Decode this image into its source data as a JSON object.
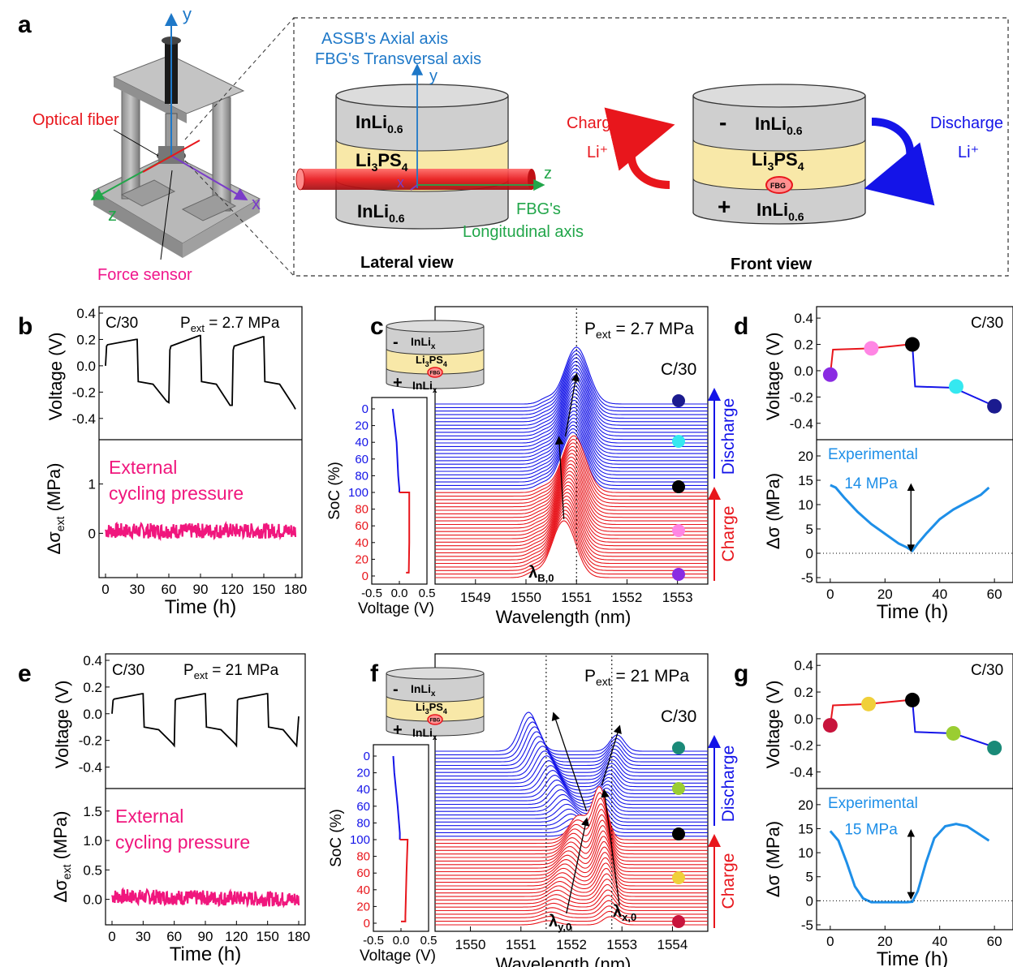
{
  "panel_letters": {
    "a": "a",
    "b": "b",
    "c": "c",
    "d": "d",
    "e": "e",
    "f": "f",
    "g": "g"
  },
  "panel_a": {
    "optical_fiber": "Optical fiber",
    "force_sensor": "Force sensor",
    "axis_y": "y",
    "axis_z": "z",
    "axis_x": "x",
    "assb_axial": "ASSB's Axial axis",
    "fbg_transversal": "FBG's Transversal axis",
    "fbg_s": "FBG's",
    "longitudinal_axis": "Longitudinal axis",
    "inli": "InLi",
    "inli_sub": "0.6",
    "li3ps4_li": "Li",
    "li3ps4_3": "3",
    "li3ps4_ps": "PS",
    "li3ps4_4": "4",
    "lateral_view": "Lateral view",
    "front_view": "Front view",
    "charge": "Charge",
    "discharge": "Discharge",
    "li_plus": "Li⁺",
    "minus": "-",
    "plus": "+",
    "fbg": "FBG"
  },
  "row1": {
    "b": {
      "rate": "C/30",
      "p_ext_prefix": "P",
      "p_ext_sub": "ext",
      "p_ext_value": " = 2.7 MPa",
      "ylabel_voltage": "Voltage (V)",
      "ylabel_stress": "Δσ",
      "ylabel_stress_sub": "ext",
      "ylabel_stress_unit": " (MPa)",
      "external_line1": "External",
      "external_line2": "cycling pressure",
      "xlabel": "Time (h)",
      "x_ticks": [
        "0",
        "30",
        "60",
        "90",
        "120",
        "150",
        "180"
      ],
      "v_ticks": [
        "0.4",
        "0.2",
        "0.0",
        "-0.2",
        "-0.4"
      ],
      "s_ticks": [
        "1",
        "0"
      ]
    },
    "c": {
      "p_ext_prefix": "P",
      "p_ext_sub": "ext",
      "p_ext_value": " = 2.7 MPa",
      "rate": "C/30",
      "soc_label": "SoC (%)",
      "soc_ticks": [
        "0",
        "20",
        "40",
        "60",
        "80",
        "100",
        "80",
        "60",
        "40",
        "20",
        "0"
      ],
      "volt_label": "Voltage (V)",
      "volt_ticks": [
        "-0.5",
        "0.0",
        "0.5"
      ],
      "xlabel": "Wavelength (nm)",
      "wl_ticks": [
        "1549",
        "1550",
        "1551",
        "1552",
        "1553"
      ],
      "lambda_main": "λ",
      "lambda_sub": "B,0",
      "discharge": "Discharge",
      "charge": "Charge",
      "inset_inli": "InLi",
      "inset_x": "x",
      "inset_li": "Li",
      "inset_3": "3",
      "inset_ps": "PS",
      "inset_4": "4",
      "inset_minus": "-",
      "inset_plus": "+",
      "inset_fbg": "FBG",
      "dot_colors": [
        "#1b1b8f",
        "#35e8f0",
        "#000000",
        "#ff86e4",
        "#8a2be2"
      ]
    },
    "d": {
      "rate": "C/30",
      "ylabel_voltage": "Voltage (V)",
      "ylabel_stress": "Δσ (MPa)",
      "experimental": "Experimental",
      "annotation": "14 MPa",
      "xlabel": "Time (h)",
      "x_ticks": [
        "0",
        "20",
        "40",
        "60"
      ],
      "v_ticks": [
        "0.4",
        "0.2",
        "0.0",
        "-0.2",
        "-0.4"
      ],
      "s_ticks": [
        "20",
        "15",
        "10",
        "5",
        "0",
        "-5"
      ],
      "dot_colors": [
        "#8a2be2",
        "#ff86e4",
        "#000000",
        "#35e8f0",
        "#1b1b8f"
      ]
    }
  },
  "row2": {
    "e": {
      "rate": "C/30",
      "p_ext_prefix": "P",
      "p_ext_sub": "ext",
      "p_ext_value": " = 21 MPa",
      "ylabel_voltage": "Voltage (V)",
      "ylabel_stress": "Δσ",
      "ylabel_stress_sub": "ext",
      "ylabel_stress_unit": " (MPa)",
      "external_line1": "External",
      "external_line2": "cycling pressure",
      "xlabel": "Time (h)",
      "x_ticks": [
        "0",
        "30",
        "60",
        "90",
        "120",
        "150",
        "180"
      ],
      "v_ticks": [
        "0.4",
        "0.2",
        "0.0",
        "-0.2",
        "-0.4"
      ],
      "s_ticks": [
        "1.5",
        "1.0",
        "0.5",
        "0.0"
      ]
    },
    "f": {
      "p_ext_prefix": "P",
      "p_ext_sub": "ext",
      "p_ext_value": " = 21 MPa",
      "rate": "C/30",
      "soc_label": "SoC (%)",
      "soc_ticks": [
        "0",
        "20",
        "40",
        "60",
        "80",
        "100",
        "80",
        "60",
        "40",
        "20",
        "0"
      ],
      "volt_label": "Voltage (V)",
      "volt_ticks": [
        "-0.5",
        "0.0",
        "0.5"
      ],
      "xlabel": "Wavelength (nm)",
      "wl_ticks": [
        "1550",
        "1551",
        "1552",
        "1553",
        "1554"
      ],
      "lambda_y": "λ",
      "lambda_y_sub": "y,0",
      "lambda_x": "λ",
      "lambda_x_sub": "x,0",
      "discharge": "Discharge",
      "charge": "Charge",
      "inset_inli": "InLi",
      "inset_x": "x",
      "inset_li": "Li",
      "inset_3": "3",
      "inset_ps": "PS",
      "inset_4": "4",
      "inset_minus": "-",
      "inset_plus": "+",
      "inset_fbg": "FBG",
      "dot_colors": [
        "#1a8a78",
        "#9acd32",
        "#000000",
        "#f0d03a",
        "#c8143c"
      ]
    },
    "g": {
      "rate": "C/30",
      "ylabel_voltage": "Voltage (V)",
      "ylabel_stress": "Δσ (MPa)",
      "experimental": "Experimental",
      "annotation": "15 MPa",
      "xlabel": "Time (h)",
      "x_ticks": [
        "0",
        "20",
        "40",
        "60"
      ],
      "v_ticks": [
        "0.4",
        "0.2",
        "0.0",
        "-0.2",
        "-0.4"
      ],
      "s_ticks": [
        "20",
        "15",
        "10",
        "5",
        "0",
        "-5"
      ],
      "dot_colors": [
        "#c8143c",
        "#f0d03a",
        "#000000",
        "#9acd32",
        "#1a8a78"
      ]
    }
  },
  "colors": {
    "charge": "#e8161c",
    "discharge": "#1414e8",
    "stress": "#f0167d",
    "experimental": "#1e8fe8",
    "fiber": "#e8161c",
    "electrolyte": "#f8e8a8",
    "electrode": "#cfcfcf",
    "axis_y": "#1e78c8",
    "axis_z": "#22a64a",
    "axis_x": "#7a3cc8",
    "force_sensor": "#f0168c"
  },
  "chart_data": [
    {
      "panel": "b",
      "type": "line",
      "xlabel": "Time (h)",
      "ylabel": "Voltage (V)",
      "xlim": [
        0,
        180
      ],
      "ylim": [
        -0.5,
        0.4
      ],
      "series": [
        {
          "values_x": [
            0,
            1,
            2,
            29,
            30,
            31,
            45,
            58,
            60,
            61,
            62,
            89,
            90,
            91,
            105,
            118,
            120,
            121,
            122,
            149,
            150,
            151,
            165,
            178,
            180
          ],
          "values_y": [
            0.0,
            0.15,
            0.16,
            0.2,
            0.2,
            -0.12,
            -0.14,
            -0.27,
            -0.28,
            0.12,
            0.15,
            0.23,
            0.23,
            -0.12,
            -0.14,
            -0.3,
            -0.3,
            0.12,
            0.15,
            0.22,
            0.22,
            -0.12,
            -0.14,
            -0.3,
            -0.33
          ]
        }
      ]
    },
    {
      "panel": "b-stress",
      "type": "line",
      "xlabel": "Time (h)",
      "xlim": [
        0,
        180
      ],
      "ylim": [
        -0.8,
        1.8
      ],
      "series": [
        {
          "values_x": [
            0,
            180
          ],
          "values_y": [
            0.05,
            0.05
          ]
        }
      ]
    },
    {
      "panel": "c",
      "type": "line",
      "xlabel": "Wavelength (nm)",
      "xlim": [
        1548.2,
        1553.6
      ],
      "curves": 50,
      "peak_start_nm": 1550.75,
      "peak_end_nm": 1551.0
    },
    {
      "panel": "d",
      "type": "line",
      "xlabel": "Time (h)",
      "ylabel": "Δσ (MPa)",
      "xlim": [
        -5,
        65
      ],
      "ylim_voltage": [
        -0.5,
        0.4
      ],
      "ylim_stress": [
        -5,
        22
      ],
      "voltage_x": [
        0,
        1,
        15,
        29,
        30,
        31,
        45,
        58,
        60
      ],
      "voltage_y": [
        -0.03,
        0.16,
        0.17,
        0.2,
        0.2,
        -0.12,
        -0.13,
        -0.25,
        -0.27
      ],
      "dots_x": [
        0,
        15,
        30,
        46,
        60
      ],
      "dots_y": [
        -0.03,
        0.17,
        0.2,
        -0.12,
        -0.27
      ],
      "stress_x": [
        0,
        2,
        5,
        10,
        15,
        20,
        25,
        28,
        30,
        32,
        35,
        40,
        45,
        50,
        55,
        58
      ],
      "stress_y": [
        14,
        13.5,
        11.5,
        8.5,
        6,
        4,
        2,
        1.2,
        0.5,
        2,
        4,
        7,
        9,
        10.5,
        12,
        13.5
      ]
    },
    {
      "panel": "e",
      "type": "line",
      "xlabel": "Time (h)",
      "ylabel": "Voltage (V)",
      "xlim": [
        0,
        180
      ],
      "ylim": [
        -0.5,
        0.4
      ],
      "series": [
        {
          "values_x": [
            0,
            1,
            2,
            29,
            30,
            31,
            45,
            58,
            60,
            61,
            62,
            89,
            90,
            91,
            105,
            118,
            120,
            121,
            122,
            149,
            150,
            151,
            165,
            178,
            180
          ],
          "values_y": [
            0.0,
            0.1,
            0.11,
            0.15,
            0.15,
            -0.1,
            -0.12,
            -0.22,
            -0.24,
            0.1,
            0.11,
            0.15,
            0.15,
            -0.1,
            -0.12,
            -0.22,
            -0.24,
            0.1,
            0.11,
            0.15,
            0.15,
            -0.1,
            -0.12,
            -0.24,
            -0.02
          ]
        }
      ]
    },
    {
      "panel": "e-stress",
      "type": "line",
      "xlabel": "Time (h)",
      "xlim": [
        0,
        180
      ],
      "ylim": [
        -0.35,
        1.8
      ],
      "series": [
        {
          "values_x": [
            0,
            180
          ],
          "values_y": [
            0.05,
            0.0
          ]
        }
      ]
    },
    {
      "panel": "f",
      "type": "line",
      "xlabel": "Wavelength (nm)",
      "xlim": [
        1549.3,
        1554.7
      ],
      "curves": 50,
      "peak_y_nm": 1551.5,
      "peak_x_nm": 1552.8
    },
    {
      "panel": "g",
      "type": "line",
      "xlabel": "Time (h)",
      "ylabel": "Δσ (MPa)",
      "xlim": [
        -5,
        65
      ],
      "ylim_voltage": [
        -0.5,
        0.4
      ],
      "ylim_stress": [
        -5,
        22
      ],
      "voltage_x": [
        0,
        1,
        14,
        29,
        30,
        31,
        45,
        58,
        60
      ],
      "voltage_y": [
        -0.05,
        0.1,
        0.11,
        0.14,
        0.14,
        -0.1,
        -0.11,
        -0.2,
        -0.22
      ],
      "dots_x": [
        0,
        14,
        30,
        45,
        60
      ],
      "dots_y": [
        -0.05,
        0.11,
        0.14,
        -0.11,
        -0.22
      ],
      "stress_x": [
        0,
        3,
        6,
        9,
        12,
        15,
        20,
        25,
        28,
        30,
        32,
        35,
        38,
        42,
        46,
        50,
        54,
        58
      ],
      "stress_y": [
        14.5,
        12.5,
        8,
        3,
        0.5,
        -0.3,
        -0.3,
        -0.3,
        -0.3,
        -0.2,
        2,
        8,
        13,
        15.5,
        16,
        15.5,
        14,
        12.5
      ]
    }
  ]
}
